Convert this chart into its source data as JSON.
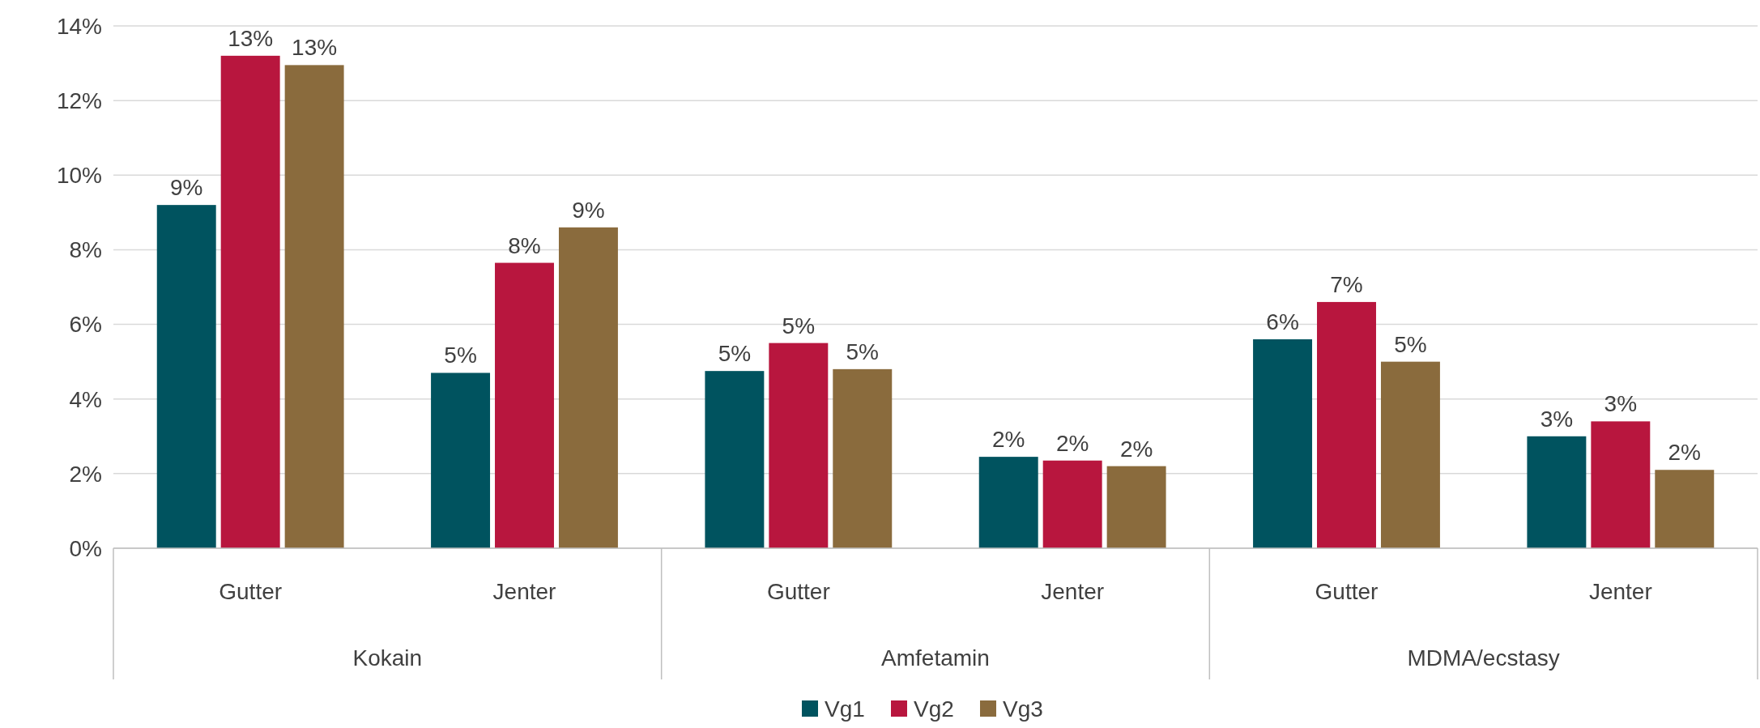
{
  "chart_data": {
    "type": "bar",
    "categories": [
      "Gutter",
      "Jenter",
      "Gutter",
      "Jenter",
      "Gutter",
      "Jenter"
    ],
    "series": [
      {
        "name": "Vg1",
        "color": "#00535f",
        "values": [
          9.2,
          4.7,
          4.75,
          2.45,
          5.6,
          3.0
        ],
        "value_labels": [
          "9%",
          "5%",
          "5%",
          "2%",
          "6%",
          "3%"
        ]
      },
      {
        "name": "Vg2",
        "color": "#b8163e",
        "values": [
          13.2,
          7.65,
          5.5,
          2.35,
          6.6,
          3.4
        ],
        "value_labels": [
          "13%",
          "8%",
          "5%",
          "2%",
          "7%",
          "3%"
        ]
      },
      {
        "name": "Vg3",
        "color": "#8a6b3d",
        "values": [
          12.95,
          8.6,
          4.8,
          2.2,
          5.0,
          2.1
        ],
        "value_labels": [
          "13%",
          "9%",
          "5%",
          "2%",
          "5%",
          "2%"
        ]
      }
    ],
    "annotations": [
      "Kokain",
      "Amfetamin",
      "MDMA/ecstasy"
    ],
    "ylim": [
      0,
      14
    ],
    "yticks": [
      {
        "value": 0,
        "label": "0%"
      },
      {
        "value": 2,
        "label": "2%"
      },
      {
        "value": 4,
        "label": "4%"
      },
      {
        "value": 6,
        "label": "6%"
      },
      {
        "value": 8,
        "label": "8%"
      },
      {
        "value": 10,
        "label": "10%"
      },
      {
        "value": 12,
        "label": "12%"
      },
      {
        "value": 14,
        "label": "14%"
      }
    ],
    "grid": "y",
    "legend": "bottom"
  }
}
